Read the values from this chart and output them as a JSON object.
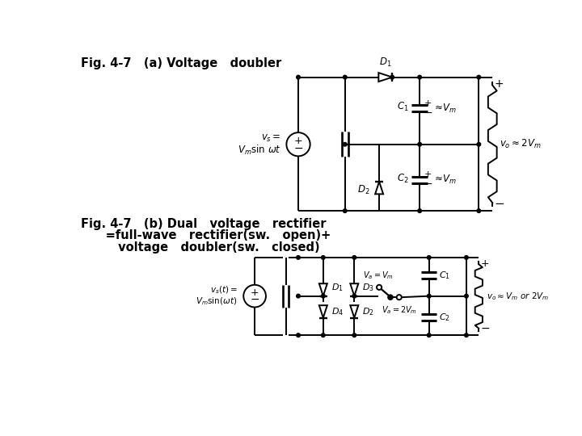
{
  "fig_title_a": "Fig. 4-7   (a) Voltage   doubler",
  "fig_title_b_line1": "Fig. 4-7   (b) Dual   voltage   rectifier",
  "fig_title_b_line2": "      =full-wave   rectifier(sw.   open)+",
  "fig_title_b_line3": "         voltage   doubler(sw.   closed)",
  "bg_color": "#ffffff",
  "line_color": "#000000",
  "lw": 1.4
}
